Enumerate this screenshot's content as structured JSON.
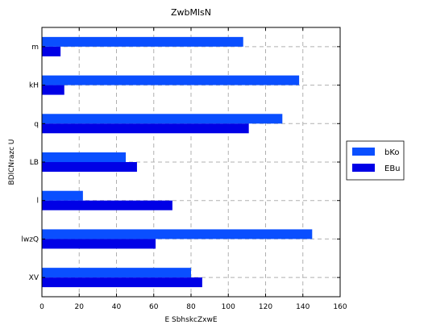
{
  "chart_data": {
    "type": "bar",
    "orientation": "horizontal",
    "title": "ZwbMlsN",
    "xlabel": "E SbhskcZxwE",
    "ylabel": "BDlCNrazc U",
    "categories": [
      "m",
      "kH",
      "q",
      "LB",
      "l",
      "lwzQ",
      "XV"
    ],
    "series": [
      {
        "name": "bKo",
        "color": "#0a4fff",
        "values": [
          108,
          138,
          129,
          45,
          22,
          145,
          80
        ]
      },
      {
        "name": "EBu",
        "color": "#0000e6",
        "values": [
          10,
          12,
          111,
          51,
          70,
          61,
          86
        ]
      }
    ],
    "xlim": [
      0,
      160
    ],
    "xticks": [
      0,
      20,
      40,
      60,
      80,
      100,
      120,
      140,
      160
    ],
    "grid": true,
    "legend_position": "right"
  }
}
